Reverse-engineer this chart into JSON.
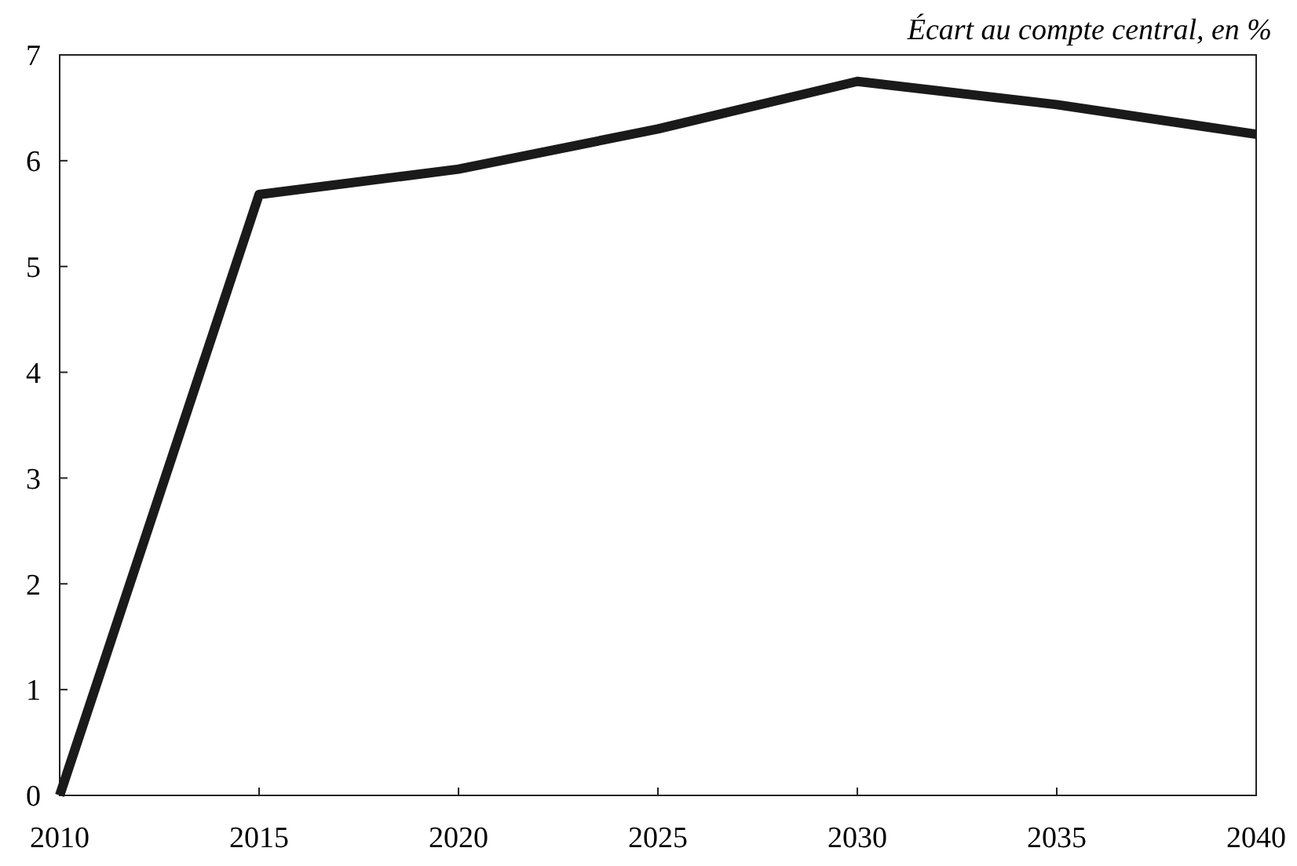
{
  "chart_data": {
    "type": "line",
    "subtitle": "Écart au compte central, en %",
    "x": [
      2010,
      2015,
      2020,
      2025,
      2030,
      2035,
      2040
    ],
    "series": [
      {
        "color": "#1a1a1a",
        "values": [
          0,
          5.68,
          5.92,
          6.3,
          6.75,
          6.53,
          6.25
        ]
      }
    ],
    "xlim": [
      2010,
      2040
    ],
    "xticks": [
      2010,
      2015,
      2020,
      2025,
      2030,
      2035,
      2040
    ],
    "ylim": [
      0,
      7
    ],
    "yticks": [
      0,
      1,
      2,
      3,
      4,
      5,
      6,
      7
    ],
    "marker": "none",
    "line_style": "solid"
  }
}
